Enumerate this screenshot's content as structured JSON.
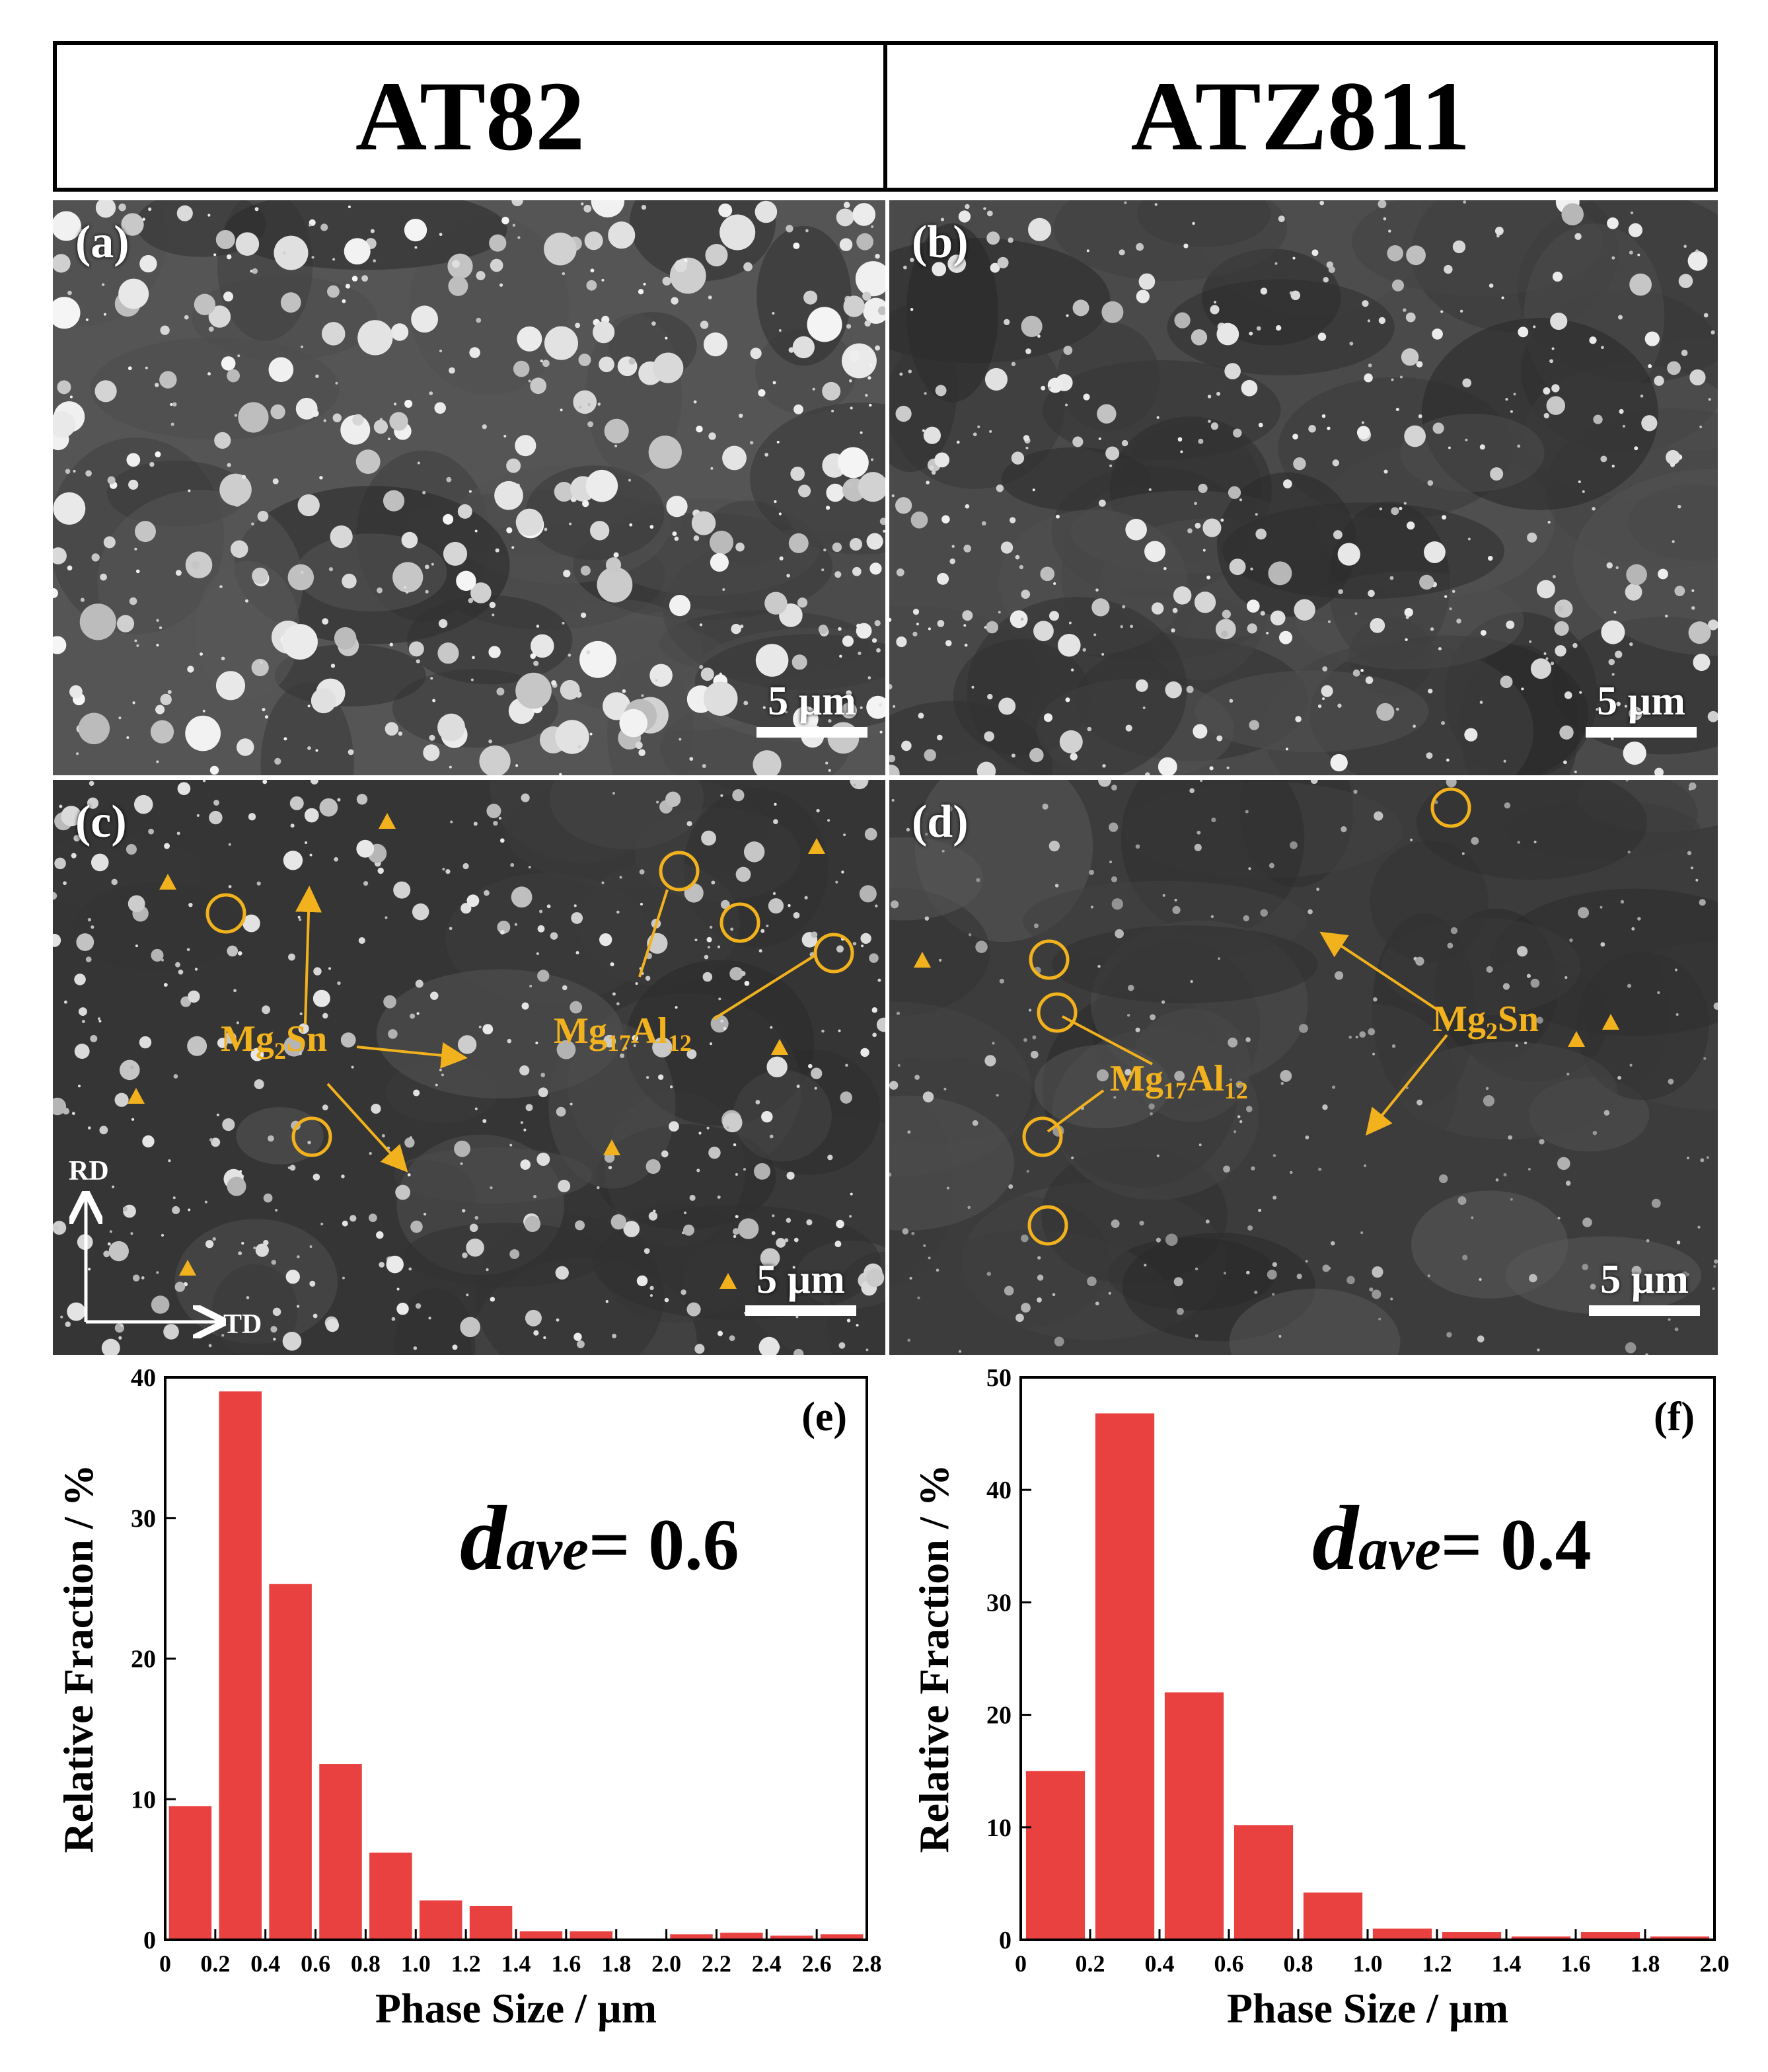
{
  "header": {
    "left_title": "AT82",
    "right_title": "ATZ811"
  },
  "panels": {
    "a": {
      "label": "(a)",
      "scale": "5 µm"
    },
    "b": {
      "label": "(b)",
      "scale": "5 µm"
    },
    "c": {
      "label": "(c)",
      "scale": "5 µm",
      "phase_sn": "Mg",
      "phase_sn_sub": "2",
      "phase_sn_tail": "Sn",
      "phase_al": "Mg",
      "phase_al_sub1": "17",
      "phase_al_mid": "Al",
      "phase_al_sub2": "12",
      "axis_rd": "RD",
      "axis_td": "TD"
    },
    "d": {
      "label": "(d)",
      "scale": "5 µm",
      "phase_sn": "Mg",
      "phase_sn_sub": "2",
      "phase_sn_tail": "Sn",
      "phase_al": "Mg",
      "phase_al_sub1": "17",
      "phase_al_mid": "Al",
      "phase_al_sub2": "12"
    }
  },
  "colors": {
    "bar": "#e8413f",
    "annotation": "#f2b21e"
  },
  "chart_data": [
    {
      "type": "bar",
      "panel": "(e)",
      "xlabel": "Phase Size / µm",
      "ylabel": "Relative Fraction / %",
      "annotation_d": "d",
      "annotation_sub": "ave",
      "annotation_val": "= 0.6",
      "xlim": [
        0,
        2.8
      ],
      "ylim": [
        0,
        40
      ],
      "xticks": [
        "0",
        "0.2",
        "0.4",
        "0.6",
        "0.8",
        "1.0",
        "1.2",
        "1.4",
        "1.6",
        "1.8",
        "2.0",
        "2.2",
        "2.4",
        "2.6",
        "2.8"
      ],
      "yticks": [
        "0",
        "10",
        "20",
        "30",
        "40"
      ],
      "bins": [
        0.1,
        0.3,
        0.5,
        0.7,
        0.9,
        1.1,
        1.3,
        1.5,
        1.7,
        1.9,
        2.1,
        2.3,
        2.5,
        2.7
      ],
      "values": [
        9.5,
        39.0,
        25.3,
        12.5,
        6.2,
        2.8,
        2.4,
        0.6,
        0.6,
        0.0,
        0.4,
        0.5,
        0.3,
        0.4
      ]
    },
    {
      "type": "bar",
      "panel": "(f)",
      "xlabel": "Phase Size / µm",
      "ylabel": "Relative Fraction / %",
      "annotation_d": "d",
      "annotation_sub": "ave",
      "annotation_val": "= 0.4",
      "xlim": [
        0,
        2.0
      ],
      "ylim": [
        0,
        50
      ],
      "xticks": [
        "0",
        "0.2",
        "0.4",
        "0.6",
        "0.8",
        "1.0",
        "1.2",
        "1.4",
        "1.6",
        "1.8",
        "2.0"
      ],
      "yticks": [
        "0",
        "10",
        "20",
        "30",
        "40",
        "50"
      ],
      "bins": [
        0.1,
        0.3,
        0.5,
        0.7,
        0.9,
        1.1,
        1.3,
        1.5,
        1.7,
        1.9
      ],
      "values": [
        15.0,
        46.8,
        22.0,
        10.2,
        4.2,
        1.0,
        0.7,
        0.3,
        0.7,
        0.3
      ]
    }
  ]
}
